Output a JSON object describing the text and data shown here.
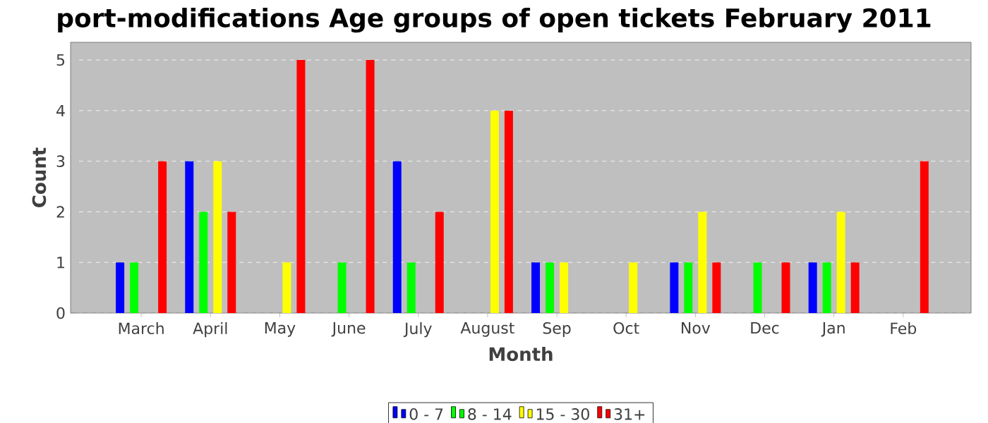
{
  "chart_data": {
    "type": "bar",
    "title": "port-modifications Age groups of open tickets February 2011",
    "xlabel": "Month",
    "ylabel": "Count",
    "categories": [
      "March",
      "April",
      "May",
      "June",
      "July",
      "August",
      "Sep",
      "Oct",
      "Nov",
      "Dec",
      "Jan",
      "Feb"
    ],
    "series": [
      {
        "name": "0 - 7",
        "color": "#0000ff",
        "values": [
          1,
          3,
          0,
          0,
          3,
          0,
          1,
          0,
          1,
          0,
          1,
          0
        ]
      },
      {
        "name": "8 - 14",
        "color": "#00ff00",
        "values": [
          1,
          2,
          0,
          1,
          1,
          0,
          1,
          0,
          1,
          1,
          1,
          0
        ]
      },
      {
        "name": "15 - 30",
        "color": "#ffff00",
        "values": [
          0,
          3,
          1,
          0,
          0,
          4,
          1,
          1,
          2,
          0,
          2,
          0
        ]
      },
      {
        "name": "31+",
        "color": "#ff0000",
        "values": [
          3,
          2,
          5,
          5,
          2,
          4,
          0,
          0,
          1,
          1,
          1,
          3
        ]
      }
    ],
    "ylim": [
      0,
      5.35
    ],
    "yticks": [
      0,
      1,
      2,
      3,
      4,
      5
    ],
    "grid": "y",
    "legend": "bottom"
  }
}
